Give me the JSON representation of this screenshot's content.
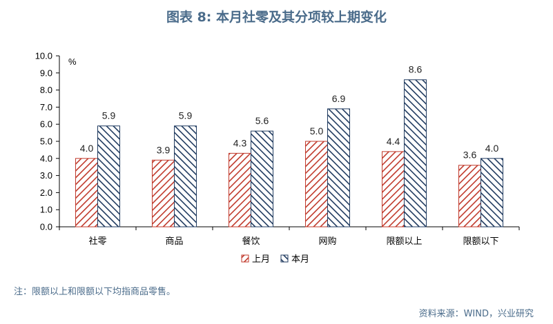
{
  "title": "图表 8:  本月社零及其分项较上期变化",
  "note": "注：限额以上和限额以下均指商品零售。",
  "source": "资料来源：WIND，兴业研究",
  "chart_data": {
    "type": "bar",
    "title": "图表 8:  本月社零及其分项较上期变化",
    "ylabel": "%",
    "xlabel": "",
    "ylim": [
      0,
      10
    ],
    "yticks": [
      "0.0",
      "1.0",
      "2.0",
      "3.0",
      "4.0",
      "5.0",
      "6.0",
      "7.0",
      "8.0",
      "9.0",
      "10.0"
    ],
    "categories": [
      "社零",
      "商品",
      "餐饮",
      "网购",
      "限额以上",
      "限额以下"
    ],
    "series": [
      {
        "name": "上月",
        "values": [
          4.0,
          3.9,
          4.3,
          5.0,
          4.4,
          3.6
        ],
        "labels": [
          "4.0",
          "3.9",
          "4.3",
          "5.0",
          "4.4",
          "3.6"
        ],
        "color": "#c0392b"
      },
      {
        "name": "本月",
        "values": [
          5.9,
          5.9,
          5.6,
          6.9,
          8.6,
          4.0
        ],
        "labels": [
          "5.9",
          "5.9",
          "5.6",
          "6.9",
          "8.6",
          "4.0"
        ],
        "color": "#1f3a5f"
      }
    ],
    "legend": "bottom",
    "grid": false
  }
}
